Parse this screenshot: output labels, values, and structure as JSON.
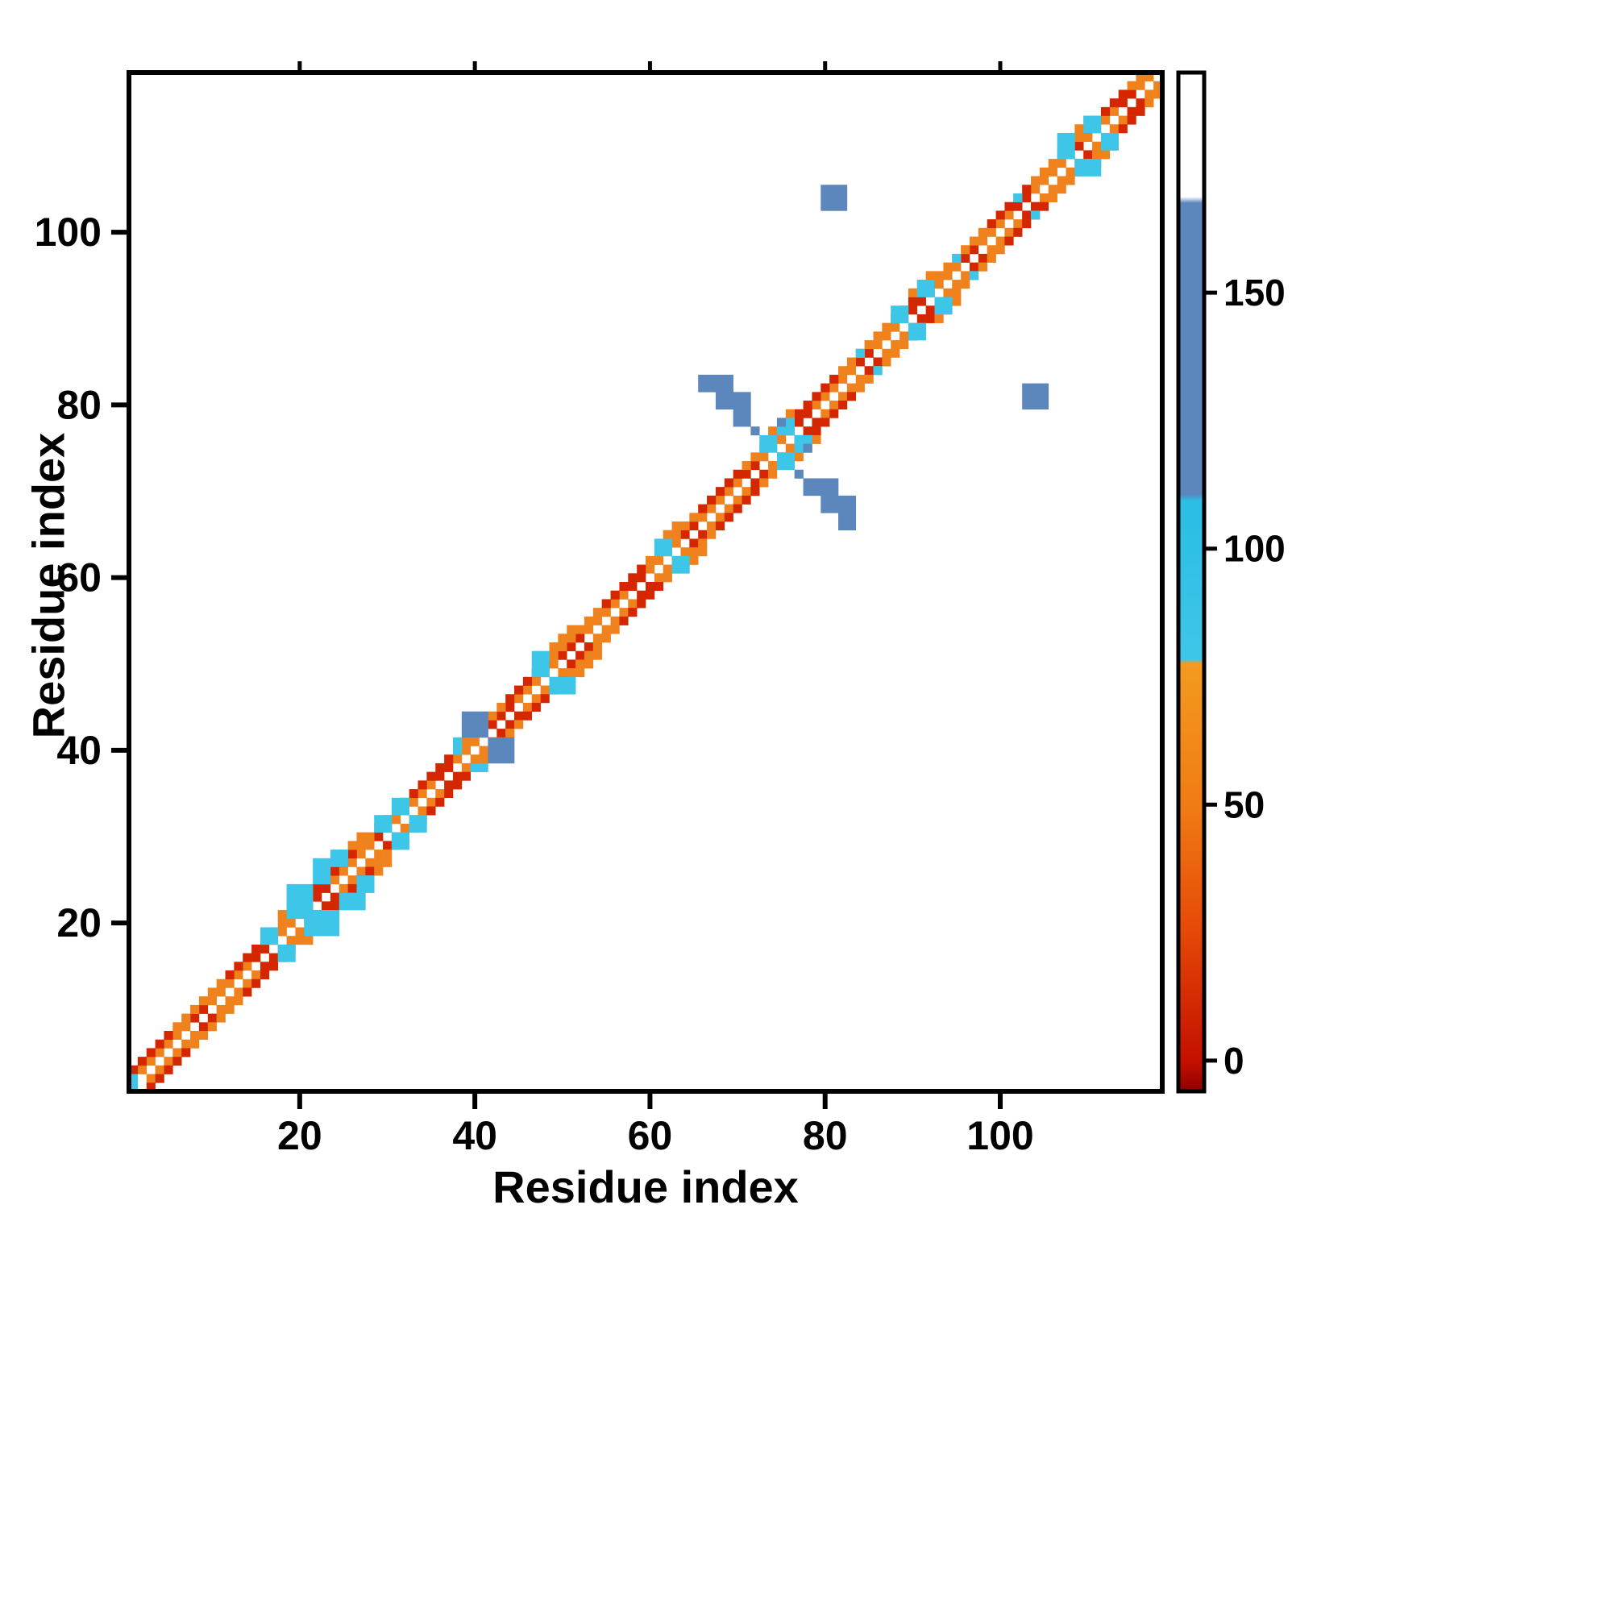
{
  "figure": {
    "background": "#ffffff",
    "frame_color": "#000000"
  },
  "chart_data": {
    "type": "heatmap",
    "title": "",
    "xlabel": "Residue index",
    "ylabel": "Residue index",
    "x_range": [
      1,
      118
    ],
    "y_range": [
      1,
      118
    ],
    "x_ticks": [
      20,
      40,
      60,
      80,
      100
    ],
    "y_ticks": [
      20,
      40,
      60,
      80,
      100
    ],
    "grid": false,
    "legend_position": "right-colorbar",
    "value_range": [
      -6,
      193
    ],
    "colorbar_ticks": [
      0,
      50,
      100,
      150
    ],
    "value_classes": {
      "red_contact": 5,
      "orange_contact": 55,
      "cyan_contact": 90,
      "blue_contact": 150
    },
    "color_scale": {
      "thresholds": [
        {
          "max": 20,
          "color": "#d42700"
        },
        {
          "max": 78,
          "color": "#f0821e"
        },
        {
          "max": 110,
          "color": "#3ec6e8"
        },
        {
          "max": 168,
          "color": "#5b87bd"
        }
      ],
      "over": "#ffffff"
    },
    "colorbar_stops": [
      {
        "at": 0.0,
        "color": "#8f0000"
      },
      {
        "at": 0.03,
        "color": "#c41000"
      },
      {
        "at": 0.16,
        "color": "#e64a08"
      },
      {
        "at": 0.281,
        "color": "#f07c14"
      },
      {
        "at": 0.42,
        "color": "#f39a20"
      },
      {
        "at": 0.424,
        "color": "#3ec6e8"
      },
      {
        "at": 0.58,
        "color": "#2bbde4"
      },
      {
        "at": 0.586,
        "color": "#5b87bd"
      },
      {
        "at": 0.872,
        "color": "#5b87bd"
      },
      {
        "at": 0.878,
        "color": "#ffffff"
      },
      {
        "at": 1.0,
        "color": "#ffffff"
      }
    ],
    "diag_runs": [
      {
        "from": 2,
        "to": 7,
        "offset": 1,
        "v": 55,
        "mirror": true
      },
      {
        "from": 8,
        "to": 9,
        "offset": 1,
        "v": 6,
        "mirror": true
      },
      {
        "from": 10,
        "to": 14,
        "offset": 1,
        "v": 55,
        "mirror": true
      },
      {
        "from": 15,
        "to": 16,
        "offset": 1,
        "v": 6,
        "mirror": true
      },
      {
        "from": 17,
        "to": 20,
        "offset": 1,
        "v": 55,
        "mirror": true
      },
      {
        "from": 21,
        "to": 23,
        "offset": 1,
        "v": 6,
        "mirror": true
      },
      {
        "from": 24,
        "to": 28,
        "offset": 1,
        "v": 55,
        "mirror": true
      },
      {
        "from": 29,
        "to": 30,
        "offset": 1,
        "v": 6,
        "mirror": true
      },
      {
        "from": 31,
        "to": 35,
        "offset": 1,
        "v": 55,
        "mirror": true
      },
      {
        "from": 36,
        "to": 37,
        "offset": 1,
        "v": 6,
        "mirror": true
      },
      {
        "from": 38,
        "to": 40,
        "offset": 1,
        "v": 55,
        "mirror": true
      },
      {
        "from": 41,
        "to": 44,
        "offset": 1,
        "v": 6,
        "mirror": true
      },
      {
        "from": 45,
        "to": 49,
        "offset": 1,
        "v": 55,
        "mirror": true
      },
      {
        "from": 50,
        "to": 52,
        "offset": 1,
        "v": 6,
        "mirror": true
      },
      {
        "from": 53,
        "to": 57,
        "offset": 1,
        "v": 55,
        "mirror": true
      },
      {
        "from": 58,
        "to": 59,
        "offset": 1,
        "v": 6,
        "mirror": true
      },
      {
        "from": 60,
        "to": 63,
        "offset": 1,
        "v": 55,
        "mirror": true
      },
      {
        "from": 64,
        "to": 65,
        "offset": 1,
        "v": 6,
        "mirror": true
      },
      {
        "from": 66,
        "to": 70,
        "offset": 1,
        "v": 55,
        "mirror": true
      },
      {
        "from": 71,
        "to": 72,
        "offset": 1,
        "v": 6,
        "mirror": true
      },
      {
        "from": 73,
        "to": 75,
        "offset": 1,
        "v": 55,
        "mirror": true
      },
      {
        "from": 76,
        "to": 78,
        "offset": 1,
        "v": 6,
        "mirror": true
      },
      {
        "from": 79,
        "to": 83,
        "offset": 1,
        "v": 55,
        "mirror": true
      },
      {
        "from": 84,
        "to": 85,
        "offset": 1,
        "v": 6,
        "mirror": true
      },
      {
        "from": 86,
        "to": 89,
        "offset": 1,
        "v": 55,
        "mirror": true
      },
      {
        "from": 90,
        "to": 91,
        "offset": 1,
        "v": 6,
        "mirror": true
      },
      {
        "from": 92,
        "to": 95,
        "offset": 1,
        "v": 55,
        "mirror": true
      },
      {
        "from": 96,
        "to": 97,
        "offset": 1,
        "v": 6,
        "mirror": true
      },
      {
        "from": 98,
        "to": 101,
        "offset": 1,
        "v": 55,
        "mirror": true
      },
      {
        "from": 102,
        "to": 103,
        "offset": 1,
        "v": 6,
        "mirror": true
      },
      {
        "from": 104,
        "to": 107,
        "offset": 1,
        "v": 55,
        "mirror": true
      },
      {
        "from": 108,
        "to": 109,
        "offset": 1,
        "v": 6,
        "mirror": true
      },
      {
        "from": 110,
        "to": 113,
        "offset": 1,
        "v": 55,
        "mirror": true
      },
      {
        "from": 114,
        "to": 115,
        "offset": 1,
        "v": 6,
        "mirror": true
      },
      {
        "from": 116,
        "to": 117,
        "offset": 1,
        "v": 55,
        "mirror": true
      },
      {
        "from": 1,
        "to": 5,
        "offset": 2,
        "v": 6,
        "mirror": true
      },
      {
        "from": 6,
        "to": 11,
        "offset": 2,
        "v": 55,
        "mirror": true
      },
      {
        "from": 12,
        "to": 16,
        "offset": 2,
        "v": 6,
        "mirror": true
      },
      {
        "from": 17,
        "to": 21,
        "offset": 2,
        "v": 55,
        "mirror": true
      },
      {
        "from": 22,
        "to": 26,
        "offset": 2,
        "v": 6,
        "mirror": true
      },
      {
        "from": 27,
        "to": 32,
        "offset": 2,
        "v": 55,
        "mirror": true
      },
      {
        "from": 33,
        "to": 37,
        "offset": 2,
        "v": 6,
        "mirror": true
      },
      {
        "from": 38,
        "to": 43,
        "offset": 2,
        "v": 55,
        "mirror": true
      },
      {
        "from": 44,
        "to": 48,
        "offset": 2,
        "v": 6,
        "mirror": true
      },
      {
        "from": 49,
        "to": 54,
        "offset": 2,
        "v": 55,
        "mirror": true
      },
      {
        "from": 55,
        "to": 59,
        "offset": 2,
        "v": 6,
        "mirror": true
      },
      {
        "from": 60,
        "to": 65,
        "offset": 2,
        "v": 55,
        "mirror": true
      },
      {
        "from": 66,
        "to": 70,
        "offset": 2,
        "v": 6,
        "mirror": true
      },
      {
        "from": 71,
        "to": 76,
        "offset": 2,
        "v": 55,
        "mirror": true
      },
      {
        "from": 77,
        "to": 81,
        "offset": 2,
        "v": 6,
        "mirror": true
      },
      {
        "from": 82,
        "to": 87,
        "offset": 2,
        "v": 55,
        "mirror": true
      },
      {
        "from": 88,
        "to": 92,
        "offset": 2,
        "v": 6,
        "mirror": true
      },
      {
        "from": 93,
        "to": 98,
        "offset": 2,
        "v": 55,
        "mirror": true
      },
      {
        "from": 99,
        "to": 103,
        "offset": 2,
        "v": 6,
        "mirror": true
      },
      {
        "from": 104,
        "to": 109,
        "offset": 2,
        "v": 55,
        "mirror": true
      },
      {
        "from": 110,
        "to": 114,
        "offset": 2,
        "v": 6,
        "mirror": true
      },
      {
        "from": 115,
        "to": 116,
        "offset": 2,
        "v": 55,
        "mirror": true
      },
      {
        "from": 18,
        "to": 20,
        "offset": 3,
        "v": 55,
        "mirror": true
      },
      {
        "from": 25,
        "to": 27,
        "offset": 3,
        "v": 55,
        "mirror": true
      },
      {
        "from": 49,
        "to": 51,
        "offset": 3,
        "v": 55,
        "mirror": true
      },
      {
        "from": 61,
        "to": 63,
        "offset": 3,
        "v": 55,
        "mirror": true
      },
      {
        "from": 74,
        "to": 76,
        "offset": 3,
        "v": 55,
        "mirror": true
      },
      {
        "from": 90,
        "to": 92,
        "offset": 3,
        "v": 55,
        "mirror": true
      },
      {
        "from": 108,
        "to": 110,
        "offset": 3,
        "v": 55,
        "mirror": true
      }
    ],
    "blobs": [
      {
        "x": 1,
        "y": 1,
        "w": 1,
        "h": 2,
        "v": 90,
        "mirror": false
      },
      {
        "x": 16,
        "y": 18,
        "w": 2,
        "h": 2,
        "v": 90,
        "mirror": true
      },
      {
        "x": 19,
        "y": 21,
        "w": 3,
        "h": 4,
        "v": 90,
        "mirror": true
      },
      {
        "x": 22,
        "y": 25,
        "w": 2,
        "h": 3,
        "v": 90,
        "mirror": true
      },
      {
        "x": 24,
        "y": 27,
        "w": 2,
        "h": 2,
        "v": 90,
        "mirror": true
      },
      {
        "x": 29,
        "y": 31,
        "w": 2,
        "h": 2,
        "v": 90,
        "mirror": true
      },
      {
        "x": 31,
        "y": 33,
        "w": 2,
        "h": 2,
        "v": 90,
        "mirror": true
      },
      {
        "x": 38,
        "y": 40,
        "w": 1,
        "h": 2,
        "v": 90,
        "mirror": true
      },
      {
        "x": 47,
        "y": 49,
        "w": 2,
        "h": 3,
        "v": 90,
        "mirror": true
      },
      {
        "x": 61,
        "y": 63,
        "w": 2,
        "h": 2,
        "v": 90,
        "mirror": true
      },
      {
        "x": 73,
        "y": 75,
        "w": 2,
        "h": 2,
        "v": 90,
        "mirror": true
      },
      {
        "x": 75,
        "y": 77,
        "w": 2,
        "h": 2,
        "v": 90,
        "mirror": true
      },
      {
        "x": 84,
        "y": 86,
        "w": 1,
        "h": 1,
        "v": 90,
        "mirror": true
      },
      {
        "x": 88,
        "y": 90,
        "w": 2,
        "h": 2,
        "v": 90,
        "mirror": true
      },
      {
        "x": 91,
        "y": 93,
        "w": 2,
        "h": 2,
        "v": 90,
        "mirror": true
      },
      {
        "x": 95,
        "y": 97,
        "w": 1,
        "h": 1,
        "v": 90,
        "mirror": true
      },
      {
        "x": 102,
        "y": 104,
        "w": 1,
        "h": 1,
        "v": 90,
        "mirror": true
      },
      {
        "x": 107,
        "y": 109,
        "w": 2,
        "h": 3,
        "v": 90,
        "mirror": true
      },
      {
        "x": 110,
        "y": 112,
        "w": 2,
        "h": 2,
        "v": 90,
        "mirror": true
      },
      {
        "x": 39,
        "y": 42,
        "w": 3,
        "h": 3,
        "v": 150,
        "mirror": true
      },
      {
        "x": 66,
        "y": 82,
        "w": 4,
        "h": 2,
        "v": 150,
        "mirror": true
      },
      {
        "x": 68,
        "y": 80,
        "w": 4,
        "h": 2,
        "v": 150,
        "mirror": true
      },
      {
        "x": 70,
        "y": 78,
        "w": 2,
        "h": 2,
        "v": 150,
        "mirror": true
      },
      {
        "x": 72,
        "y": 77,
        "w": 1,
        "h": 1,
        "v": 150,
        "mirror": true
      },
      {
        "x": 75,
        "y": 78,
        "w": 1,
        "h": 1,
        "v": 150,
        "mirror": true
      },
      {
        "x": 80,
        "y": 103,
        "w": 3,
        "h": 3,
        "v": 150,
        "mirror": true
      }
    ]
  }
}
